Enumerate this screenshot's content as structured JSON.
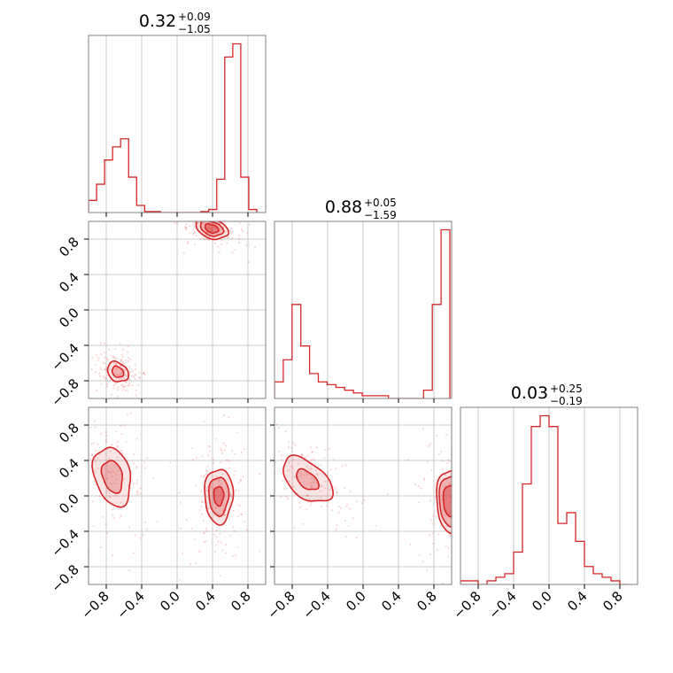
{
  "chart_data": {
    "type": "corner",
    "color": "#d62728",
    "grid": true,
    "axis_range": [
      -1.0,
      1.0
    ],
    "tick_values": [
      -0.8,
      -0.4,
      0.0,
      0.4,
      0.8
    ],
    "tick_labels": [
      "−0.8",
      "−0.4",
      "0.0",
      "0.4",
      "0.8"
    ],
    "titles": [
      {
        "value": "0.32",
        "upper": "+0.09",
        "lower": "−1.05"
      },
      {
        "value": "0.88",
        "upper": "+0.05",
        "lower": "−1.59"
      },
      {
        "value": "0.03",
        "upper": "+0.25",
        "lower": "−0.19"
      }
    ],
    "histograms": [
      {
        "parameter": 0,
        "bin_edges": [
          -1.0,
          0.9
        ],
        "counts": [
          0.12,
          0.28,
          0.52,
          0.65,
          0.73,
          0.35,
          0.07,
          0.01,
          0.01,
          0.0,
          0.0,
          0.0,
          0.0,
          0.0,
          0.01,
          0.03,
          0.33,
          1.54,
          1.67,
          0.35,
          0.03
        ]
      },
      {
        "parameter": 1,
        "bin_edges": [
          -1.0,
          0.98
        ],
        "counts": [
          0.06,
          0.14,
          0.34,
          0.19,
          0.09,
          0.06,
          0.05,
          0.04,
          0.03,
          0.02,
          0.01,
          0.01,
          0.01,
          0.0,
          0.0,
          0.0,
          0.0,
          0.03,
          0.34,
          0.61
        ]
      },
      {
        "parameter": 2,
        "bin_edges": [
          -1.0,
          0.9
        ],
        "counts": [
          0.01,
          0.01,
          0.0,
          0.01,
          0.02,
          0.03,
          0.09,
          0.28,
          0.44,
          0.47,
          0.44,
          0.17,
          0.2,
          0.12,
          0.05,
          0.03,
          0.02,
          0.01,
          0.0
        ]
      }
    ],
    "contour_panels": [
      {
        "x_param": 0,
        "y_param": 1,
        "modes": [
          {
            "cx": -0.67,
            "cy": -0.7,
            "rx": 0.13,
            "ry": 0.1,
            "rot": -40,
            "levels": [
              0.55,
              1.0
            ]
          },
          {
            "cx": 0.39,
            "cy": 0.92,
            "rx": 0.16,
            "ry": 0.09,
            "rot": -20,
            "levels": [
              0.5,
              0.85,
              1.2
            ]
          }
        ]
      },
      {
        "x_param": 0,
        "y_param": 2,
        "modes": [
          {
            "cx": -0.73,
            "cy": 0.22,
            "rx": 0.2,
            "ry": 0.34,
            "rot": 15,
            "levels": [
              0.55,
              1.0
            ]
          },
          {
            "cx": 0.47,
            "cy": 0.0,
            "rx": 0.16,
            "ry": 0.31,
            "rot": 0,
            "levels": [
              0.35,
              0.7,
              1.0
            ]
          }
        ]
      },
      {
        "x_param": 1,
        "y_param": 2,
        "modes": [
          {
            "cx": -0.63,
            "cy": 0.18,
            "rx": 0.33,
            "ry": 0.19,
            "rot": -40,
            "levels": [
              0.45,
              1.0
            ]
          },
          {
            "cx": 0.98,
            "cy": -0.05,
            "rx": 0.15,
            "ry": 0.35,
            "rot": 0,
            "levels": [
              0.5,
              0.8,
              1.0
            ]
          }
        ]
      }
    ]
  }
}
